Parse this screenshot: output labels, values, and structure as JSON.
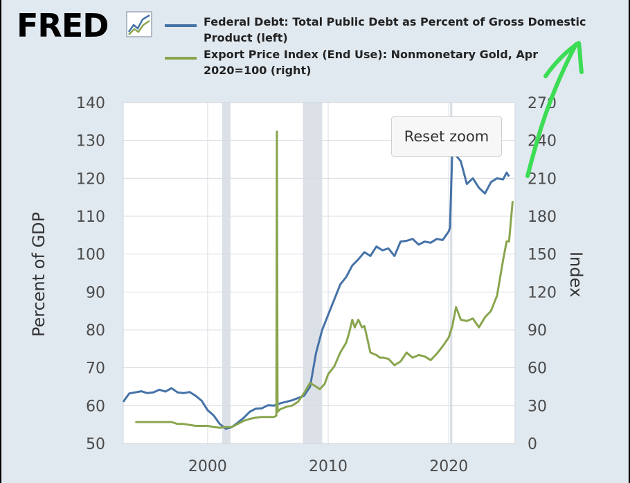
{
  "logo": {
    "text": "FRED",
    "icon": "fred-chart-icon"
  },
  "reset_zoom": {
    "label": "Reset zoom"
  },
  "chart_data": {
    "type": "line",
    "xlim": [
      1993,
      2025.5
    ],
    "x_ticks": [
      2000,
      2010,
      2020
    ],
    "x_tick_labels": [
      "2000",
      "2010",
      "2020"
    ],
    "recessions": [
      [
        2001.2,
        2001.9
      ],
      [
        2007.9,
        2009.5
      ],
      [
        2020.1,
        2020.3
      ]
    ],
    "left_axis": {
      "label": "Percent of GDP",
      "lim": [
        50,
        140
      ],
      "ticks": [
        50,
        60,
        70,
        80,
        90,
        100,
        110,
        120,
        130,
        140
      ],
      "tick_labels": [
        "50",
        "60",
        "70",
        "80",
        "90",
        "100",
        "110",
        "120",
        "130",
        "140"
      ]
    },
    "right_axis": {
      "label": "Index",
      "lim": [
        0,
        270
      ],
      "ticks": [
        0,
        30,
        60,
        90,
        120,
        150,
        180,
        210,
        240,
        270
      ],
      "tick_labels": [
        "0",
        "30",
        "60",
        "90",
        "120",
        "150",
        "180",
        "210",
        "240",
        "270"
      ]
    },
    "grid": true,
    "series": [
      {
        "name": "Federal Debt: Total Public Debt as Percent of Gross Domestic Product (left)",
        "axis": "left",
        "color": "#4572a7",
        "points": [
          [
            1993.0,
            61.0
          ],
          [
            1993.5,
            63.2
          ],
          [
            1994.0,
            63.5
          ],
          [
            1994.5,
            63.8
          ],
          [
            1995.0,
            63.3
          ],
          [
            1995.5,
            63.5
          ],
          [
            1996.0,
            64.2
          ],
          [
            1996.5,
            63.7
          ],
          [
            1997.0,
            64.6
          ],
          [
            1997.5,
            63.5
          ],
          [
            1998.0,
            63.3
          ],
          [
            1998.5,
            63.6
          ],
          [
            1999.0,
            62.6
          ],
          [
            1999.5,
            61.3
          ],
          [
            2000.0,
            58.8
          ],
          [
            2000.5,
            57.4
          ],
          [
            2001.0,
            55.2
          ],
          [
            2001.5,
            53.9
          ],
          [
            2002.0,
            54.3
          ],
          [
            2002.5,
            55.5
          ],
          [
            2003.0,
            56.8
          ],
          [
            2003.5,
            58.4
          ],
          [
            2004.0,
            59.2
          ],
          [
            2004.5,
            59.3
          ],
          [
            2005.0,
            60.1
          ],
          [
            2005.5,
            60.0
          ],
          [
            2006.0,
            60.6
          ],
          [
            2006.5,
            61.0
          ],
          [
            2007.0,
            61.4
          ],
          [
            2007.5,
            62.0
          ],
          [
            2008.0,
            62.6
          ],
          [
            2008.5,
            65.0
          ],
          [
            2009.0,
            74.0
          ],
          [
            2009.5,
            80.0
          ],
          [
            2010.0,
            84.0
          ],
          [
            2010.5,
            88.0
          ],
          [
            2011.0,
            92.0
          ],
          [
            2011.5,
            94.0
          ],
          [
            2012.0,
            97.0
          ],
          [
            2012.5,
            98.6
          ],
          [
            2013.0,
            100.5
          ],
          [
            2013.5,
            99.5
          ],
          [
            2014.0,
            102.0
          ],
          [
            2014.5,
            101.0
          ],
          [
            2015.0,
            101.5
          ],
          [
            2015.5,
            99.5
          ],
          [
            2016.0,
            103.3
          ],
          [
            2016.5,
            103.5
          ],
          [
            2017.0,
            104.0
          ],
          [
            2017.5,
            102.5
          ],
          [
            2018.0,
            103.3
          ],
          [
            2018.5,
            103.0
          ],
          [
            2019.0,
            104.0
          ],
          [
            2019.5,
            103.7
          ],
          [
            2020.0,
            106.0
          ],
          [
            2020.1,
            107.0
          ],
          [
            2020.3,
            128.0
          ],
          [
            2020.6,
            126.0
          ],
          [
            2021.0,
            124.5
          ],
          [
            2021.5,
            118.5
          ],
          [
            2022.0,
            120.0
          ],
          [
            2022.5,
            117.5
          ],
          [
            2023.0,
            116.0
          ],
          [
            2023.5,
            119.0
          ],
          [
            2024.0,
            120.0
          ],
          [
            2024.5,
            119.7
          ],
          [
            2024.8,
            121.5
          ],
          [
            2025.0,
            120.5
          ]
        ]
      },
      {
        "name": "Export Price Index (End Use): Nonmonetary Gold, Apr 2020=100 (right)",
        "axis": "right",
        "color": "#89a54e",
        "points": [
          [
            1994.0,
            17.0
          ],
          [
            1995.0,
            17.0
          ],
          [
            1996.0,
            17.0
          ],
          [
            1997.0,
            17.0
          ],
          [
            1997.5,
            15.5
          ],
          [
            1998.0,
            15.5
          ],
          [
            1999.0,
            14.0
          ],
          [
            2000.0,
            14.0
          ],
          [
            2000.5,
            13.0
          ],
          [
            2001.0,
            12.5
          ],
          [
            2001.5,
            13.0
          ],
          [
            2002.0,
            13.0
          ],
          [
            2002.5,
            15.5
          ],
          [
            2003.0,
            18.0
          ],
          [
            2003.5,
            19.5
          ],
          [
            2004.0,
            20.5
          ],
          [
            2004.5,
            21.0
          ],
          [
            2005.0,
            21.0
          ],
          [
            2005.5,
            21.0
          ],
          [
            2005.7,
            22.0
          ],
          [
            2005.75,
            247.0
          ],
          [
            2005.8,
            25.0
          ],
          [
            2006.0,
            27.0
          ],
          [
            2006.5,
            29.0
          ],
          [
            2007.0,
            30.0
          ],
          [
            2007.5,
            33.0
          ],
          [
            2008.0,
            40.0
          ],
          [
            2008.5,
            48.0
          ],
          [
            2009.0,
            45.0
          ],
          [
            2009.3,
            43.0
          ],
          [
            2009.7,
            47.0
          ],
          [
            2010.0,
            55.0
          ],
          [
            2010.5,
            61.0
          ],
          [
            2011.0,
            72.0
          ],
          [
            2011.5,
            80.0
          ],
          [
            2011.75,
            88.0
          ],
          [
            2012.0,
            98.0
          ],
          [
            2012.2,
            92.0
          ],
          [
            2012.5,
            98.0
          ],
          [
            2012.8,
            92.0
          ],
          [
            2013.0,
            93.0
          ],
          [
            2013.2,
            85.0
          ],
          [
            2013.5,
            72.0
          ],
          [
            2014.0,
            70.0
          ],
          [
            2014.3,
            68.0
          ],
          [
            2014.6,
            68.0
          ],
          [
            2015.0,
            67.0
          ],
          [
            2015.5,
            62.0
          ],
          [
            2016.0,
            65.0
          ],
          [
            2016.5,
            72.0
          ],
          [
            2017.0,
            68.0
          ],
          [
            2017.5,
            70.0
          ],
          [
            2018.0,
            69.0
          ],
          [
            2018.5,
            66.0
          ],
          [
            2019.0,
            71.0
          ],
          [
            2019.5,
            77.0
          ],
          [
            2020.0,
            84.0
          ],
          [
            2020.3,
            93.0
          ],
          [
            2020.6,
            108.0
          ],
          [
            2021.0,
            98.0
          ],
          [
            2021.5,
            97.0
          ],
          [
            2022.0,
            99.0
          ],
          [
            2022.5,
            92.0
          ],
          [
            2023.0,
            100.0
          ],
          [
            2023.5,
            105.0
          ],
          [
            2024.0,
            117.0
          ],
          [
            2024.5,
            145.0
          ],
          [
            2024.8,
            160.0
          ],
          [
            2025.0,
            160.0
          ],
          [
            2025.3,
            192.0
          ]
        ]
      }
    ]
  }
}
